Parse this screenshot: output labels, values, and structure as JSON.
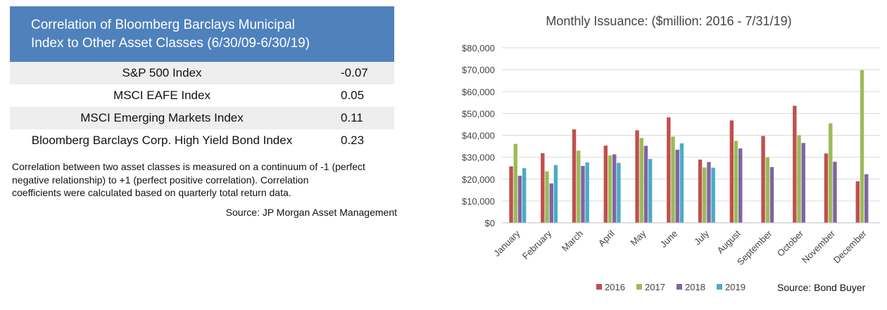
{
  "table": {
    "title_lines": [
      "Correlation of Bloomberg Barclays Municipal",
      "Index to Other Asset Classes (6/30/09-6/30/19)"
    ],
    "rows": [
      {
        "label": "S&P 500 Index",
        "value": "-0.07"
      },
      {
        "label": "MSCI EAFE Index",
        "value": "0.05"
      },
      {
        "label": "MSCI Emerging Markets Index",
        "value": "0.11"
      },
      {
        "label": "Bloomberg Barclays Corp. High Yield Bond Index",
        "value": "0.23"
      }
    ],
    "note_lines": [
      "Correlation between two asset classes is measured on a continuum of -1 (perfect",
      "negative relationship) to +1 (perfect positive correlation).  Correlation",
      "coefficients were calculated based on quarterly total return data."
    ],
    "source": "Source: JP Morgan Asset Management",
    "header_color": "#4f81bd"
  },
  "chart_data": {
    "type": "bar",
    "title": "Monthly Issuance: ($million: 2016 - 7/31/19)",
    "xlabel": "",
    "ylabel": "",
    "categories": [
      "January",
      "February",
      "March",
      "April",
      "May",
      "June",
      "July",
      "August",
      "September",
      "October",
      "November",
      "December"
    ],
    "series": [
      {
        "name": "2016",
        "color": "#c0504d",
        "values": [
          25800,
          31800,
          42700,
          35300,
          42300,
          48200,
          28900,
          46800,
          39700,
          53500,
          31700,
          19000
        ]
      },
      {
        "name": "2017",
        "color": "#9bbb59",
        "values": [
          36100,
          23500,
          33000,
          30800,
          38800,
          39400,
          25300,
          37500,
          29900,
          40000,
          45500,
          69800
        ]
      },
      {
        "name": "2018",
        "color": "#8064a2",
        "values": [
          21500,
          18000,
          26000,
          31300,
          35200,
          33400,
          27800,
          34000,
          25500,
          36500,
          27900,
          22200
        ]
      },
      {
        "name": "2019",
        "color": "#4bacc6",
        "values": [
          25000,
          26400,
          27600,
          27400,
          29200,
          36300,
          25200,
          null,
          null,
          null,
          null,
          null
        ]
      }
    ],
    "ylim": [
      0,
      80000
    ],
    "yticks": [
      "$0",
      "$10,000",
      "$20,000",
      "$30,000",
      "$40,000",
      "$50,000",
      "$60,000",
      "$70,000",
      "$80,000"
    ],
    "grid": true,
    "legend": "bottom",
    "source": "Source: Bond Buyer"
  }
}
